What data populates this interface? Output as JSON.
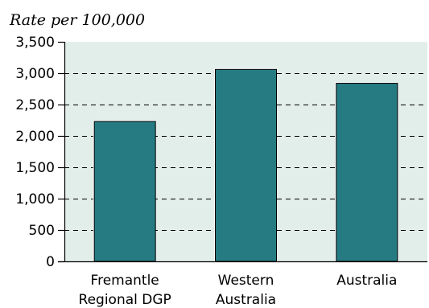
{
  "chart_data": {
    "type": "bar",
    "title": "",
    "ylabel": "Rate per 100,000",
    "xlabel": "",
    "categories": [
      [
        "Fremantle",
        "Regional DGP"
      ],
      [
        "Western",
        "Australia"
      ],
      [
        "Australia"
      ]
    ],
    "values": [
      2230,
      3060,
      2840
    ],
    "ylim": [
      0,
      3500
    ],
    "yticks": [
      0,
      500,
      1000,
      1500,
      2000,
      2500,
      3000,
      3500
    ],
    "ytick_labels": [
      "0",
      "500",
      "1,000",
      "1,500",
      "2,000",
      "2,500",
      "3,000",
      "3,500"
    ],
    "grid": true,
    "grid_style": "dashed",
    "colors": {
      "bar": "#267B82",
      "plot_background": "#E2EEEA",
      "grid": "#000000",
      "axis": "#000000"
    }
  }
}
